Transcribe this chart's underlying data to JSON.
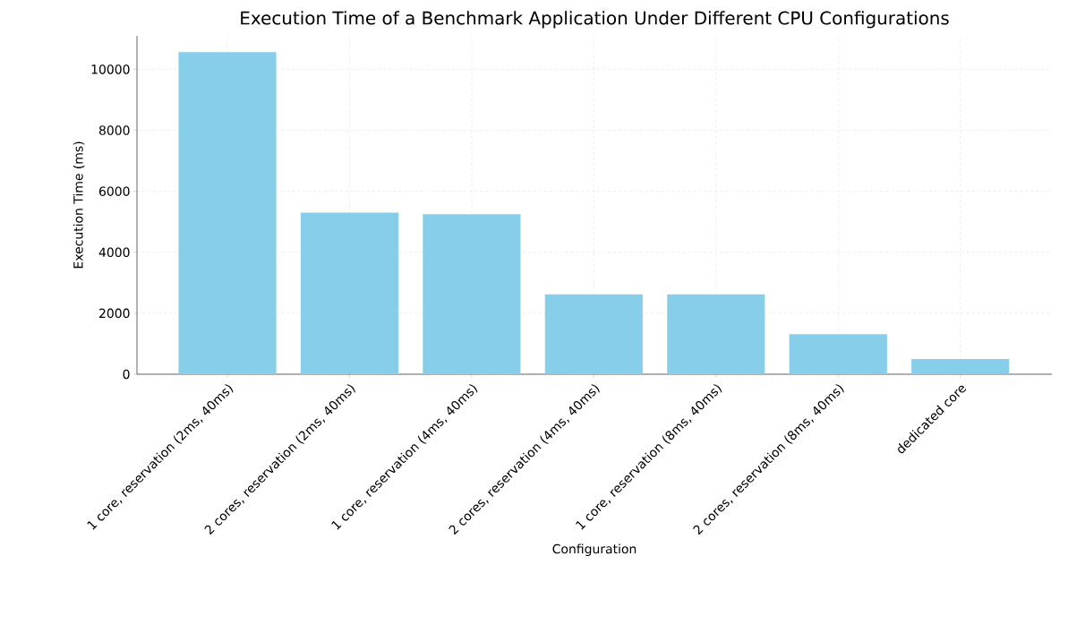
{
  "chart_data": {
    "type": "bar",
    "title": "Execution Time of a Benchmark Application Under Different CPU Configurations",
    "xlabel": "Configuration",
    "ylabel": "Execution Time (ms)",
    "categories": [
      "1 core, reservation (2ms, 40ms)",
      "2 cores, reservation (2ms, 40ms)",
      "1 core, reservation (4ms, 40ms)",
      "2 cores, reservation (4ms, 40ms)",
      "1 core, reservation (8ms, 40ms)",
      "2 cores, reservation (8ms, 40ms)",
      "dedicated core"
    ],
    "values": [
      10560,
      5300,
      5250,
      2620,
      2620,
      1310,
      500
    ],
    "color": "#87ceeb",
    "ylim": [
      0,
      11100
    ],
    "yticks": [
      0,
      2000,
      4000,
      6000,
      8000,
      10000
    ],
    "grid": true
  }
}
